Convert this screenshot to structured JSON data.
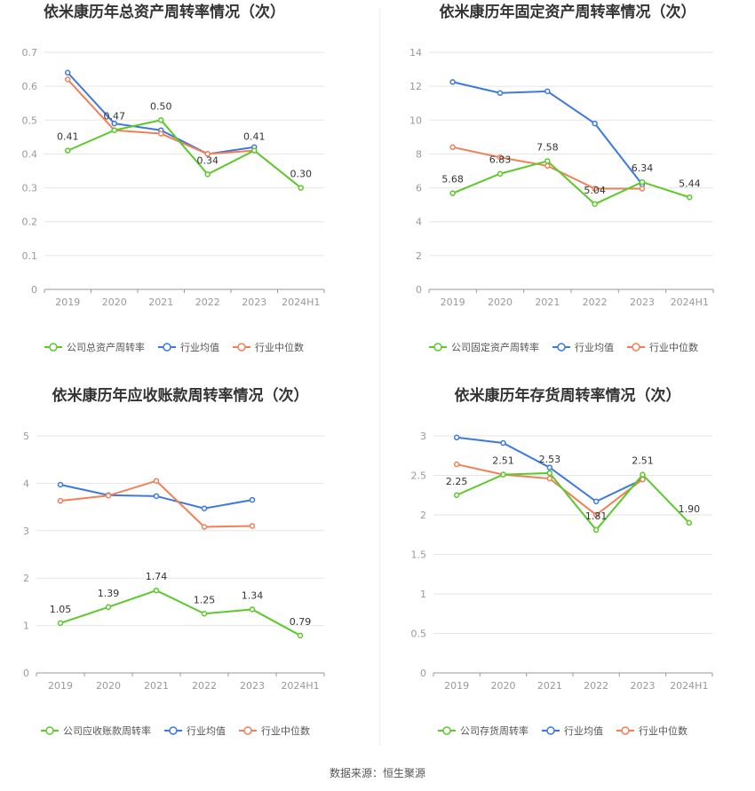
{
  "source_label": "数据来源：恒生聚源",
  "colors": {
    "company": "#5cc92a",
    "avg": "#3d78de",
    "median": "#f08055"
  },
  "chart_data": [
    {
      "type": "line",
      "title": "依米康历年总资产周转率情况（次）",
      "categories": [
        "2019",
        "2020",
        "2021",
        "2022",
        "2023",
        "2024H1"
      ],
      "ylim": [
        0,
        0.7
      ],
      "yticks": [
        "0",
        "0.1",
        "0.2",
        "0.3",
        "0.4",
        "0.5",
        "0.6",
        "0.7"
      ],
      "legend": [
        "公司总资产周转率",
        "行业均值",
        "行业中位数"
      ],
      "series": [
        {
          "name": "公司总资产周转率",
          "values": [
            0.41,
            0.47,
            0.5,
            0.34,
            0.41,
            0.3
          ],
          "labels": [
            "0.41",
            "0.47",
            "0.50",
            "0.34",
            "0.41",
            "0.30"
          ]
        },
        {
          "name": "行业均值",
          "values": [
            0.64,
            0.49,
            0.47,
            0.4,
            0.42,
            null
          ]
        },
        {
          "name": "行业中位数",
          "values": [
            0.62,
            0.47,
            0.46,
            0.4,
            0.41,
            null
          ]
        }
      ]
    },
    {
      "type": "line",
      "title": "依米康历年固定资产周转率情况（次）",
      "categories": [
        "2019",
        "2020",
        "2021",
        "2022",
        "2023",
        "2024H1"
      ],
      "ylim": [
        0,
        14
      ],
      "yticks": [
        "0",
        "2",
        "4",
        "6",
        "8",
        "10",
        "12",
        "14"
      ],
      "legend": [
        "公司固定资产周转率",
        "行业均值",
        "行业中位数"
      ],
      "series": [
        {
          "name": "公司固定资产周转率",
          "values": [
            5.68,
            6.83,
            7.58,
            5.04,
            6.34,
            5.44
          ],
          "labels": [
            "5.68",
            "6.83",
            "7.58",
            "5.04",
            "6.34",
            "5.44"
          ]
        },
        {
          "name": "行业均值",
          "values": [
            12.25,
            11.6,
            11.7,
            9.8,
            6.2,
            null
          ]
        },
        {
          "name": "行业中位数",
          "values": [
            8.4,
            7.8,
            7.3,
            5.95,
            5.95,
            null
          ]
        }
      ]
    },
    {
      "type": "line",
      "title": "依米康历年应收账款周转率情况（次）",
      "categories": [
        "2019",
        "2020",
        "2021",
        "2022",
        "2023",
        "2024H1"
      ],
      "ylim": [
        0,
        5
      ],
      "yticks": [
        "0",
        "1",
        "2",
        "3",
        "4",
        "5"
      ],
      "legend": [
        "公司应收账款周转率",
        "行业均值",
        "行业中位数"
      ],
      "series": [
        {
          "name": "公司应收账款周转率",
          "values": [
            1.05,
            1.39,
            1.74,
            1.25,
            1.34,
            0.79
          ],
          "labels": [
            "1.05",
            "1.39",
            "1.74",
            "1.25",
            "1.34",
            "0.79"
          ]
        },
        {
          "name": "行业均值",
          "values": [
            3.97,
            3.75,
            3.73,
            3.47,
            3.65,
            null
          ]
        },
        {
          "name": "行业中位数",
          "values": [
            3.63,
            3.74,
            4.05,
            3.08,
            3.1,
            null
          ]
        }
      ]
    },
    {
      "type": "line",
      "title": "依米康历年存货周转率情况（次）",
      "categories": [
        "2019",
        "2020",
        "2021",
        "2022",
        "2023",
        "2024H1"
      ],
      "ylim": [
        0,
        3
      ],
      "yticks": [
        "0",
        "0.5",
        "1",
        "1.5",
        "2",
        "2.5",
        "3"
      ],
      "legend": [
        "公司存货周转率",
        "行业均值",
        "行业中位数"
      ],
      "series": [
        {
          "name": "公司存货周转率",
          "values": [
            2.25,
            2.51,
            2.53,
            1.81,
            2.51,
            1.9
          ],
          "labels": [
            "2.25",
            "2.51",
            "2.53",
            "1.81",
            "2.51",
            "1.90"
          ]
        },
        {
          "name": "行业均值",
          "values": [
            2.98,
            2.91,
            2.6,
            2.17,
            2.45,
            null
          ]
        },
        {
          "name": "行业中位数",
          "values": [
            2.64,
            2.51,
            2.46,
            2.0,
            2.45,
            null
          ]
        }
      ]
    }
  ]
}
